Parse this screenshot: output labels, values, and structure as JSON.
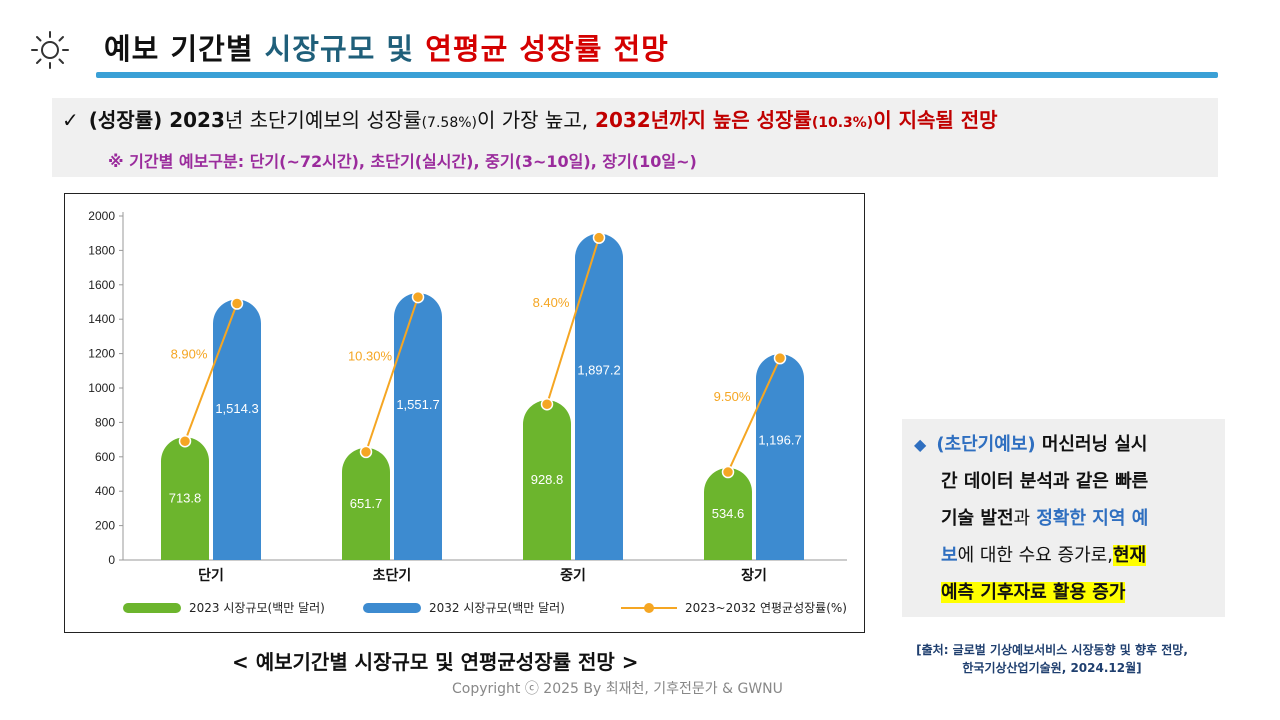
{
  "header": {
    "title_part1": "예보 기간별",
    "title_part2": "시장규모 및",
    "title_part3": "연평균 성장률 전망"
  },
  "summary": {
    "check": "✓",
    "l1_a": "(성장률) 2023",
    "l1_b": "년 초단기예보의 성장률",
    "l1_c": "(7.58%)",
    "l1_d": "이 가장 높고,",
    "l1_e": "2032년까지 높은 성장률",
    "l1_f": "(10.3%)",
    "l1_g": "이 지속될 전망",
    "note": "※ 기간별 예보구분: 단기(~72시간), 초단기(실시간), 중기(3~10일), 장기(10일~)"
  },
  "chart_data": {
    "type": "bar",
    "categories": [
      "단기",
      "초단기",
      "중기",
      "장기"
    ],
    "series": [
      {
        "name": "2023 시장규모(백만 달러)",
        "values": [
          713.8,
          651.7,
          928.8,
          534.6
        ],
        "labels": [
          "713.8",
          "651.7",
          "928.8",
          "534.6"
        ],
        "color": "#6cb52d"
      },
      {
        "name": "2032 시장규모(백만 달러)",
        "values": [
          1514.3,
          1551.7,
          1897.2,
          1196.7
        ],
        "labels": [
          "1,514.3",
          "1,551.7",
          "1,897.2",
          "1,196.7"
        ],
        "color": "#3d8bd0"
      }
    ],
    "growth": {
      "name": "2023~2032 연평균성장률(%)",
      "values": [
        8.9,
        10.3,
        8.4,
        9.5
      ],
      "labels": [
        "8.90%",
        "10.30%",
        "8.40%",
        "9.50%"
      ],
      "color": "#f5a623"
    },
    "ylim": [
      0,
      2000
    ],
    "yticks": [
      "0",
      "200",
      "400",
      "600",
      "800",
      "1000",
      "1200",
      "1400",
      "1600",
      "1800",
      "2000"
    ],
    "ytick_values": [
      0,
      200,
      400,
      600,
      800,
      1000,
      1200,
      1400,
      1600,
      1800,
      2000
    ],
    "legend": [
      "2023 시장규모(백만 달러)",
      "2032 시장규모(백만 달러)",
      "2023~2032 연평균성장률(%)"
    ]
  },
  "caption": "< 예보기간별 시장규모 및 연평균성장률 전망 >",
  "copyright": "Copyright ⓒ 2025 By 최재천, 기후전문가 & GWNU",
  "side": {
    "diamond": "◆",
    "s1": "(초단기예보)",
    "s2": "머신러닝 실시",
    "s3": "간 데이터 분석과 같은 빠른",
    "s4": "기술 발전",
    "s5": "과",
    "s6": "정확한 지역 예",
    "s7": "보",
    "s8": "에 대한 수요 증가로,",
    "s9": "현재",
    "s10": "예측 기후자료 활용 증가"
  },
  "source": {
    "line1": "[출처: 글로벌 기상예보서비스 시장동향 및 향후 전망,",
    "line2": "한국기상산업기술원, 2024.12월]"
  }
}
